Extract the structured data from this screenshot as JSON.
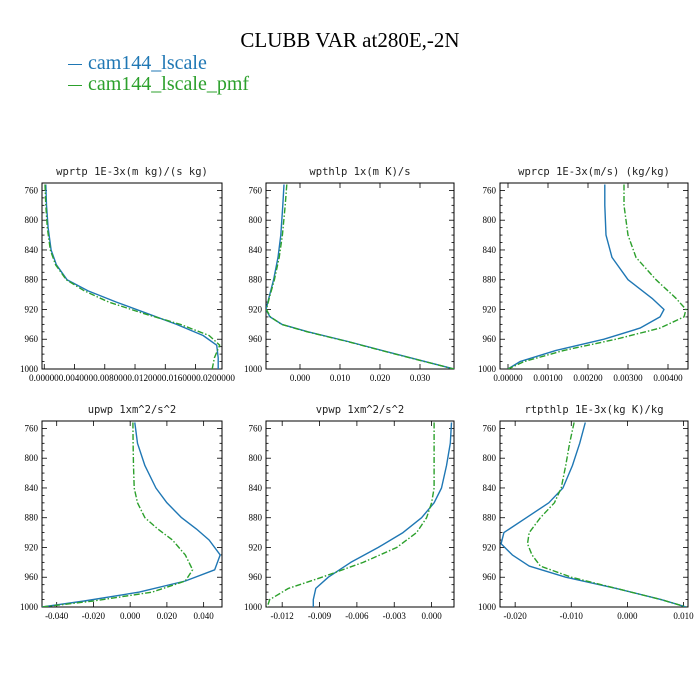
{
  "title": "CLUBB VAR at280E,-2N",
  "legend": [
    {
      "name": "cam144_lscale",
      "color": "#1f77b4",
      "dash": "solid"
    },
    {
      "name": "cam144_lscale_pmf",
      "color": "#2ca02c",
      "dash": "dashdot"
    }
  ],
  "chart_data": [
    {
      "type": "line",
      "title": "wprtp  1E-3x(m kg)/(s kg)",
      "ylim": [
        1000,
        750
      ],
      "yticks": [
        "760",
        "800",
        "840",
        "880",
        "920",
        "960",
        "1000"
      ],
      "xlim": [
        -0.0003,
        0.0235
      ],
      "xticks": [],
      "xtick_text": "0.000000.0040000.0080000.0120000.0160000.0200000",
      "x_inverted": false,
      "series": [
        {
          "name": "cam144_lscale",
          "x": [
            0.0002,
            0.0003,
            0.0005,
            0.0009,
            0.0016,
            0.003,
            0.0058,
            0.0095,
            0.0135,
            0.0175,
            0.021,
            0.0228,
            0.023,
            0.023
          ],
          "y": [
            752,
            780,
            810,
            840,
            860,
            880,
            895,
            910,
            925,
            940,
            955,
            968,
            985,
            1000
          ]
        },
        {
          "name": "cam144_lscale_pmf",
          "x": [
            0.0001,
            0.0002,
            0.0004,
            0.0008,
            0.0015,
            0.0029,
            0.0053,
            0.0085,
            0.013,
            0.018,
            0.0218,
            0.0232,
            0.0225,
            0.0222
          ],
          "y": [
            752,
            780,
            810,
            840,
            860,
            880,
            895,
            910,
            925,
            940,
            955,
            968,
            985,
            1000
          ]
        }
      ]
    },
    {
      "type": "line",
      "title": "wpthlp  1x(m K)/s",
      "ylim": [
        1000,
        750
      ],
      "yticks": [
        "760",
        "800",
        "840",
        "880",
        "920",
        "960",
        "1000"
      ],
      "xlim": [
        -0.0085,
        0.0385
      ],
      "xticks": [
        {
          "v": 0.0,
          "t": "0.000"
        },
        {
          "v": 0.01,
          "t": "0.010"
        },
        {
          "v": 0.02,
          "t": "0.020"
        },
        {
          "v": 0.03,
          "t": "0.030"
        }
      ],
      "x_inverted": false,
      "series": [
        {
          "name": "cam144_lscale",
          "x": [
            -0.004,
            -0.0043,
            -0.0048,
            -0.0055,
            -0.0066,
            -0.0078,
            -0.0085,
            -0.0075,
            -0.0045,
            0.002,
            0.012,
            0.024,
            0.0385
          ],
          "y": [
            752,
            780,
            820,
            850,
            880,
            905,
            920,
            930,
            940,
            950,
            963,
            980,
            1000
          ]
        },
        {
          "name": "cam144_lscale_pmf",
          "x": [
            -0.0033,
            -0.0037,
            -0.0044,
            -0.0052,
            -0.0064,
            -0.0077,
            -0.0084,
            -0.0074,
            -0.0046,
            0.0018,
            0.0118,
            0.0238,
            0.0385
          ],
          "y": [
            752,
            780,
            820,
            850,
            880,
            905,
            920,
            930,
            940,
            950,
            963,
            980,
            1000
          ]
        }
      ]
    },
    {
      "type": "line",
      "title": "wprcp  1E-3x(m/s) (kg/kg)",
      "ylim": [
        1000,
        750
      ],
      "yticks": [
        "760",
        "800",
        "840",
        "880",
        "920",
        "960",
        "1000"
      ],
      "xlim": [
        -0.0002,
        0.0045
      ],
      "xticks": [
        {
          "v": 0.0,
          "t": "0.00000"
        },
        {
          "v": 0.001,
          "t": "0.00100"
        },
        {
          "v": 0.002,
          "t": "0.00200"
        },
        {
          "v": 0.003,
          "t": "0.00300"
        },
        {
          "v": 0.004,
          "t": "0.00400"
        }
      ],
      "x_inverted": false,
      "series": [
        {
          "name": "cam144_lscale",
          "x": [
            0.00242,
            0.00242,
            0.00245,
            0.0026,
            0.003,
            0.0036,
            0.0039,
            0.0038,
            0.0033,
            0.0024,
            0.0012,
            0.0003,
            0.0
          ],
          "y": [
            752,
            780,
            820,
            850,
            880,
            905,
            920,
            930,
            945,
            960,
            975,
            990,
            1000
          ]
        },
        {
          "name": "cam144_lscale_pmf",
          "x": [
            0.0029,
            0.0029,
            0.003,
            0.0032,
            0.0037,
            0.0042,
            0.00445,
            0.0044,
            0.0038,
            0.0027,
            0.0014,
            0.0004,
            0.0
          ],
          "y": [
            752,
            780,
            820,
            850,
            880,
            905,
            920,
            930,
            945,
            960,
            975,
            990,
            1000
          ]
        }
      ]
    },
    {
      "type": "line",
      "title": "upwp  1xm^2/s^2",
      "ylim": [
        1000,
        750
      ],
      "yticks": [
        "760",
        "800",
        "840",
        "880",
        "920",
        "960",
        "1000"
      ],
      "xlim": [
        -0.048,
        0.05
      ],
      "xticks": [
        {
          "v": -0.04,
          "t": "-0.040"
        },
        {
          "v": -0.02,
          "t": "-0.020"
        },
        {
          "v": 0.0,
          "t": "0.000"
        },
        {
          "v": 0.02,
          "t": "0.020"
        },
        {
          "v": 0.04,
          "t": "0.040"
        }
      ],
      "x_inverted": false,
      "series": [
        {
          "name": "cam144_lscale",
          "x": [
            0.0025,
            0.004,
            0.008,
            0.014,
            0.02,
            0.028,
            0.036,
            0.043,
            0.049,
            0.046,
            0.03,
            0.005,
            -0.025,
            -0.048
          ],
          "y": [
            752,
            780,
            810,
            840,
            860,
            880,
            895,
            910,
            930,
            950,
            965,
            980,
            992,
            1000
          ]
        },
        {
          "name": "cam144_lscale_pmf",
          "x": [
            0.0015,
            0.0016,
            0.0018,
            0.0022,
            0.004,
            0.008,
            0.015,
            0.023,
            0.03,
            0.034,
            0.03,
            0.012,
            -0.02,
            -0.048
          ],
          "y": [
            752,
            780,
            810,
            840,
            860,
            880,
            895,
            910,
            930,
            950,
            965,
            980,
            992,
            1000
          ]
        }
      ]
    },
    {
      "type": "line",
      "title": "vpwp  1xm^2/s^2",
      "ylim": [
        1000,
        750
      ],
      "yticks": [
        "760",
        "800",
        "840",
        "880",
        "920",
        "960",
        "1000"
      ],
      "xlim": [
        -0.0133,
        0.0018
      ],
      "xticks": [
        {
          "v": -0.012,
          "t": "-0.012"
        },
        {
          "v": -0.009,
          "t": "-0.009"
        },
        {
          "v": -0.006,
          "t": "-0.006"
        },
        {
          "v": -0.003,
          "t": "-0.003"
        },
        {
          "v": 0.0,
          "t": "0.000"
        }
      ],
      "x_inverted": false,
      "series": [
        {
          "name": "cam144_lscale",
          "x": [
            0.0016,
            0.0015,
            0.0012,
            0.0008,
            0.0002,
            -0.0008,
            -0.0023,
            -0.0043,
            -0.0065,
            -0.0083,
            -0.0093,
            -0.0095,
            -0.0095
          ],
          "y": [
            752,
            780,
            810,
            840,
            860,
            880,
            900,
            920,
            940,
            960,
            975,
            990,
            1000
          ]
        },
        {
          "name": "cam144_lscale_pmf",
          "x": [
            0.0002,
            0.0002,
            0.0002,
            0.0002,
            0.0,
            -0.0004,
            -0.0012,
            -0.0028,
            -0.0055,
            -0.0088,
            -0.0115,
            -0.013,
            -0.0132
          ],
          "y": [
            752,
            780,
            810,
            840,
            860,
            880,
            900,
            920,
            940,
            960,
            975,
            990,
            1000
          ]
        }
      ]
    },
    {
      "type": "line",
      "title": "rtpthlp  1E-3x(kg K)/kg",
      "ylim": [
        1000,
        750
      ],
      "yticks": [
        "760",
        "800",
        "840",
        "880",
        "920",
        "960",
        "1000"
      ],
      "xlim": [
        -0.0227,
        0.0108
      ],
      "xticks": [
        {
          "v": -0.02,
          "t": "-0.020"
        },
        {
          "v": -0.01,
          "t": "-0.010"
        },
        {
          "v": 0.0,
          "t": "0.000"
        },
        {
          "v": 0.01,
          "t": "0.010"
        }
      ],
      "x_inverted": false,
      "series": [
        {
          "name": "cam144_lscale",
          "x": [
            -0.0075,
            -0.0085,
            -0.0098,
            -0.0115,
            -0.014,
            -0.018,
            -0.022,
            -0.0225,
            -0.0205,
            -0.0175,
            -0.011,
            -0.002,
            0.006,
            0.0105
          ],
          "y": [
            752,
            780,
            810,
            840,
            860,
            880,
            900,
            915,
            930,
            945,
            960,
            975,
            990,
            1000
          ]
        },
        {
          "name": "cam144_lscale_pmf",
          "x": [
            -0.0095,
            -0.0103,
            -0.011,
            -0.0118,
            -0.013,
            -0.0155,
            -0.0175,
            -0.0178,
            -0.017,
            -0.0155,
            -0.01,
            -0.002,
            0.006,
            0.0105
          ],
          "y": [
            752,
            780,
            810,
            840,
            860,
            880,
            900,
            915,
            930,
            945,
            960,
            975,
            990,
            1000
          ]
        }
      ]
    }
  ]
}
